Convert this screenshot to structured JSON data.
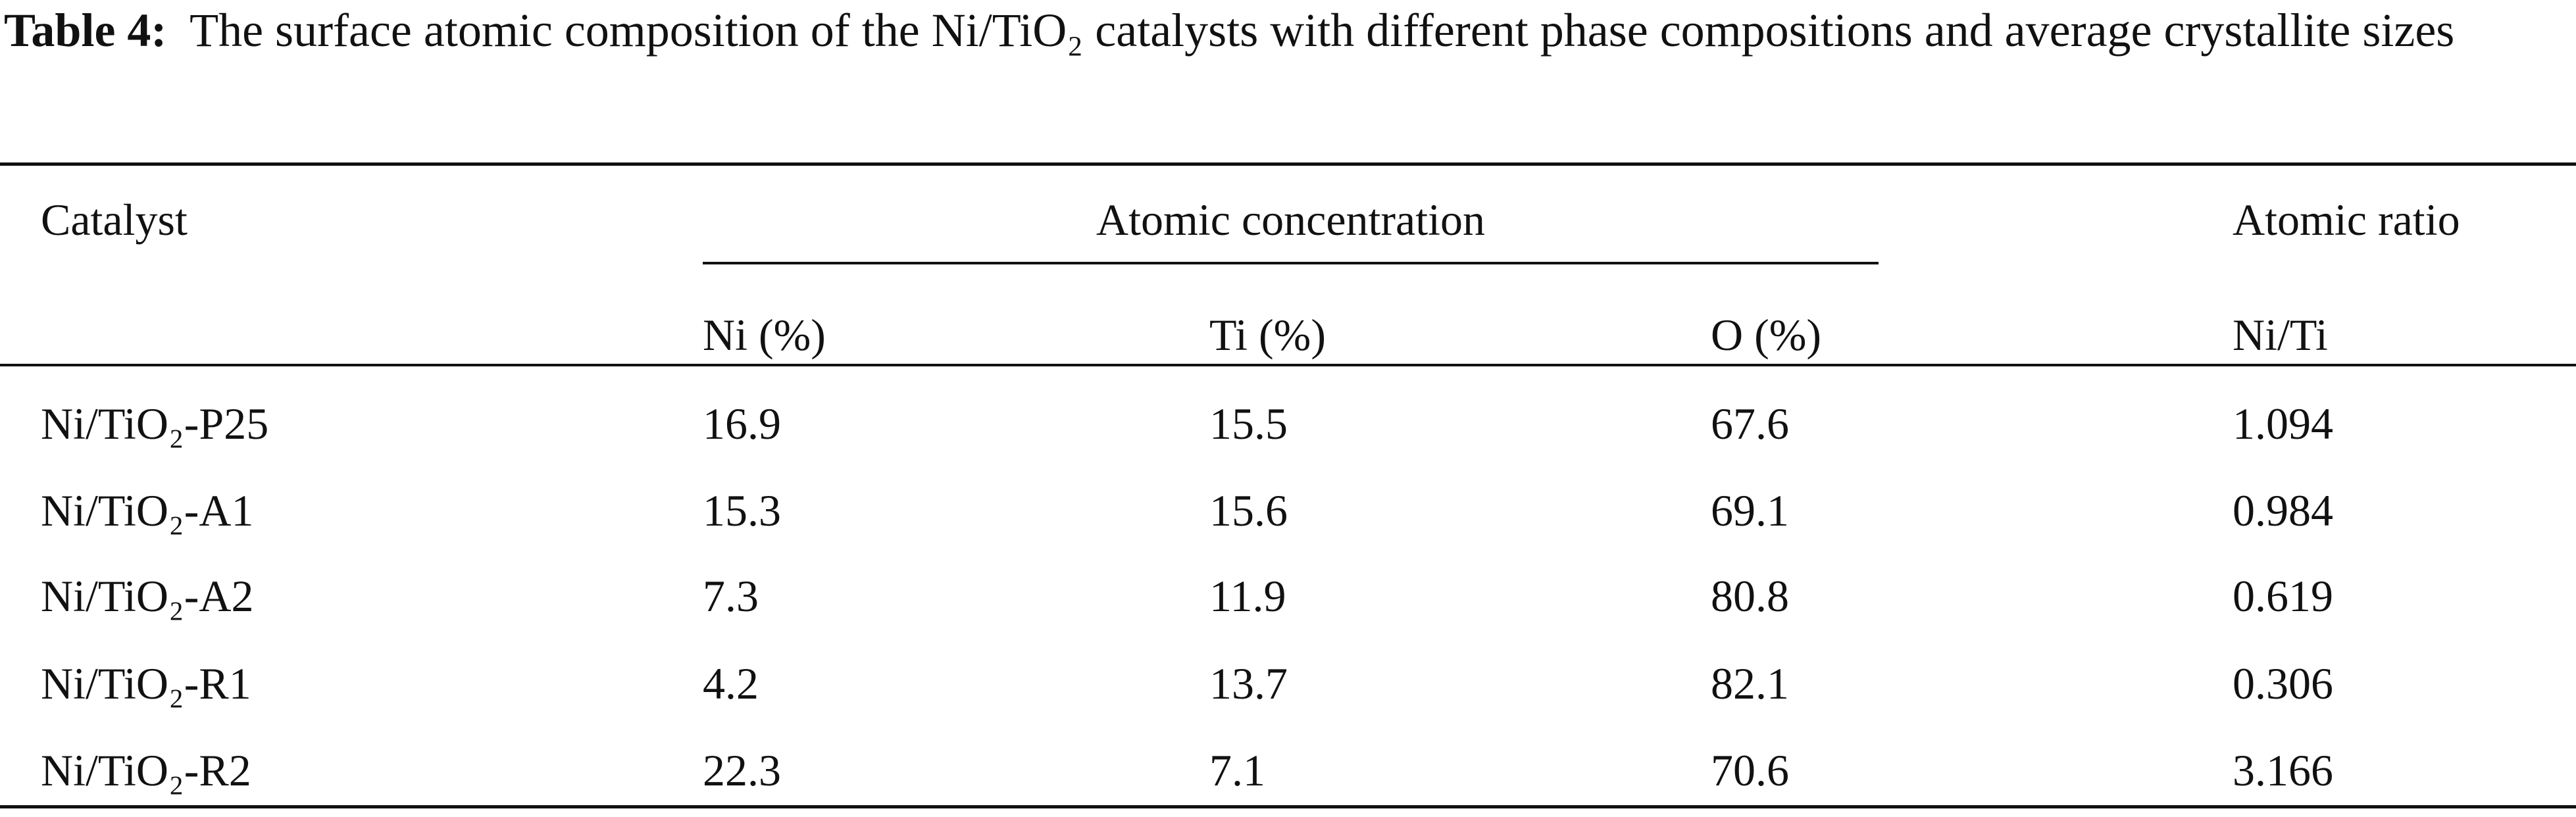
{
  "caption": {
    "label": "Table 4:",
    "text": "The surface atomic composition of the Ni/TiO₂ catalysts with different phase compositions and average crystallite sizes"
  },
  "table": {
    "header": {
      "catalyst": "Catalyst",
      "group": "Atomic concentration",
      "ratio_group": "Atomic ratio",
      "columns": [
        "Ni (%)",
        "Ti (%)",
        "O (%)",
        "Ni/Ti"
      ]
    },
    "rows": [
      [
        "Ni/TiO₂-P25",
        "16.9",
        "15.5",
        "67.6",
        "1.094"
      ],
      [
        "Ni/TiO₂-A1",
        "15.3",
        "15.6",
        "69.1",
        "0.984"
      ],
      [
        "Ni/TiO₂-A2",
        "7.3",
        "11.9",
        "80.8",
        "0.619"
      ],
      [
        "Ni/TiO₂-R1",
        "4.2",
        "13.7",
        "82.1",
        "0.306"
      ],
      [
        "Ni/TiO₂-R2",
        "22.3",
        "7.1",
        "70.6",
        "3.166"
      ]
    ]
  }
}
